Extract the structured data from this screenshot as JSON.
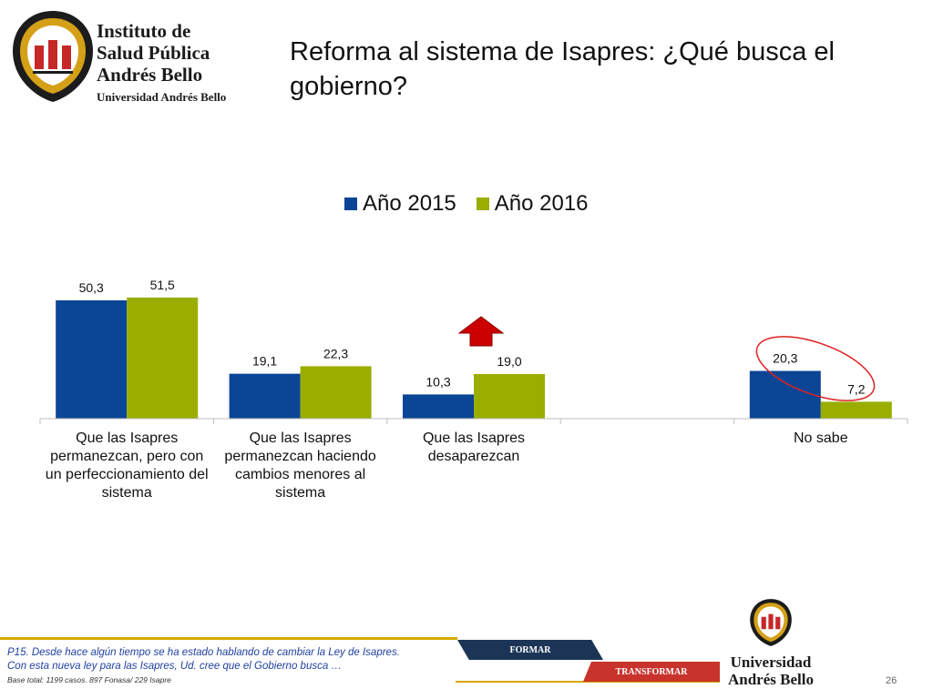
{
  "header": {
    "logo_lines": [
      "Instituto de",
      "Salud Pública",
      "Andrés Bello",
      "Universidad Andrés Bello"
    ],
    "title": "Reforma al sistema de Isapres: ¿Qué busca el gobierno?"
  },
  "colors": {
    "series_2015": "#0b4596",
    "series_2016": "#9aae00",
    "highlight_arrow": "#cc0000",
    "ellipse": "#dd2222"
  },
  "chart_data": {
    "type": "bar",
    "title": "",
    "xlabel": "",
    "ylabel": "",
    "categories": [
      "Que las Isapres permanezcan, pero con un perfeccionamiento del sistema",
      "Que las Isapres permanezcan haciendo cambios menores al sistema",
      "Que las Isapres desaparezcan",
      "",
      "No sabe"
    ],
    "category_lines": [
      [
        "Que las Isapres",
        "permanezcan, pero con",
        "un perfeccionamiento del",
        "sistema"
      ],
      [
        "Que las Isapres",
        "permanezcan haciendo",
        "cambios menores al",
        "sistema"
      ],
      [
        "Que las Isapres",
        "desaparezcan"
      ],
      [],
      [
        "No sabe"
      ]
    ],
    "series": [
      {
        "name": "Año 2015",
        "values": [
          50.3,
          19.1,
          10.3,
          null,
          20.3
        ],
        "labels": [
          "50,3",
          "19,1",
          "10,3",
          "",
          "20,3"
        ]
      },
      {
        "name": "Año 2016",
        "values": [
          51.5,
          22.3,
          19.0,
          null,
          7.2
        ],
        "labels": [
          "51,5",
          "22,3",
          "19,0",
          "",
          "7,2"
        ]
      }
    ],
    "ylim": [
      0,
      60
    ],
    "grid": false,
    "legend": "top-center"
  },
  "footer": {
    "question": "P15. Desde hace algún tiempo se ha estado hablando de cambiar la Ley de Isapres.",
    "question_2": "Con esta nueva ley para las Isapres, Ud. cree que el Gobierno busca …",
    "base": "Base total: 1199 casos. 897 Fonasa/ 229 Isapre",
    "banner_1": "FORMAR",
    "banner_2": "TRANSFORMAR",
    "logo_bottom_lines": [
      "Universidad",
      "Andrés Bello"
    ],
    "page_number": "26"
  }
}
